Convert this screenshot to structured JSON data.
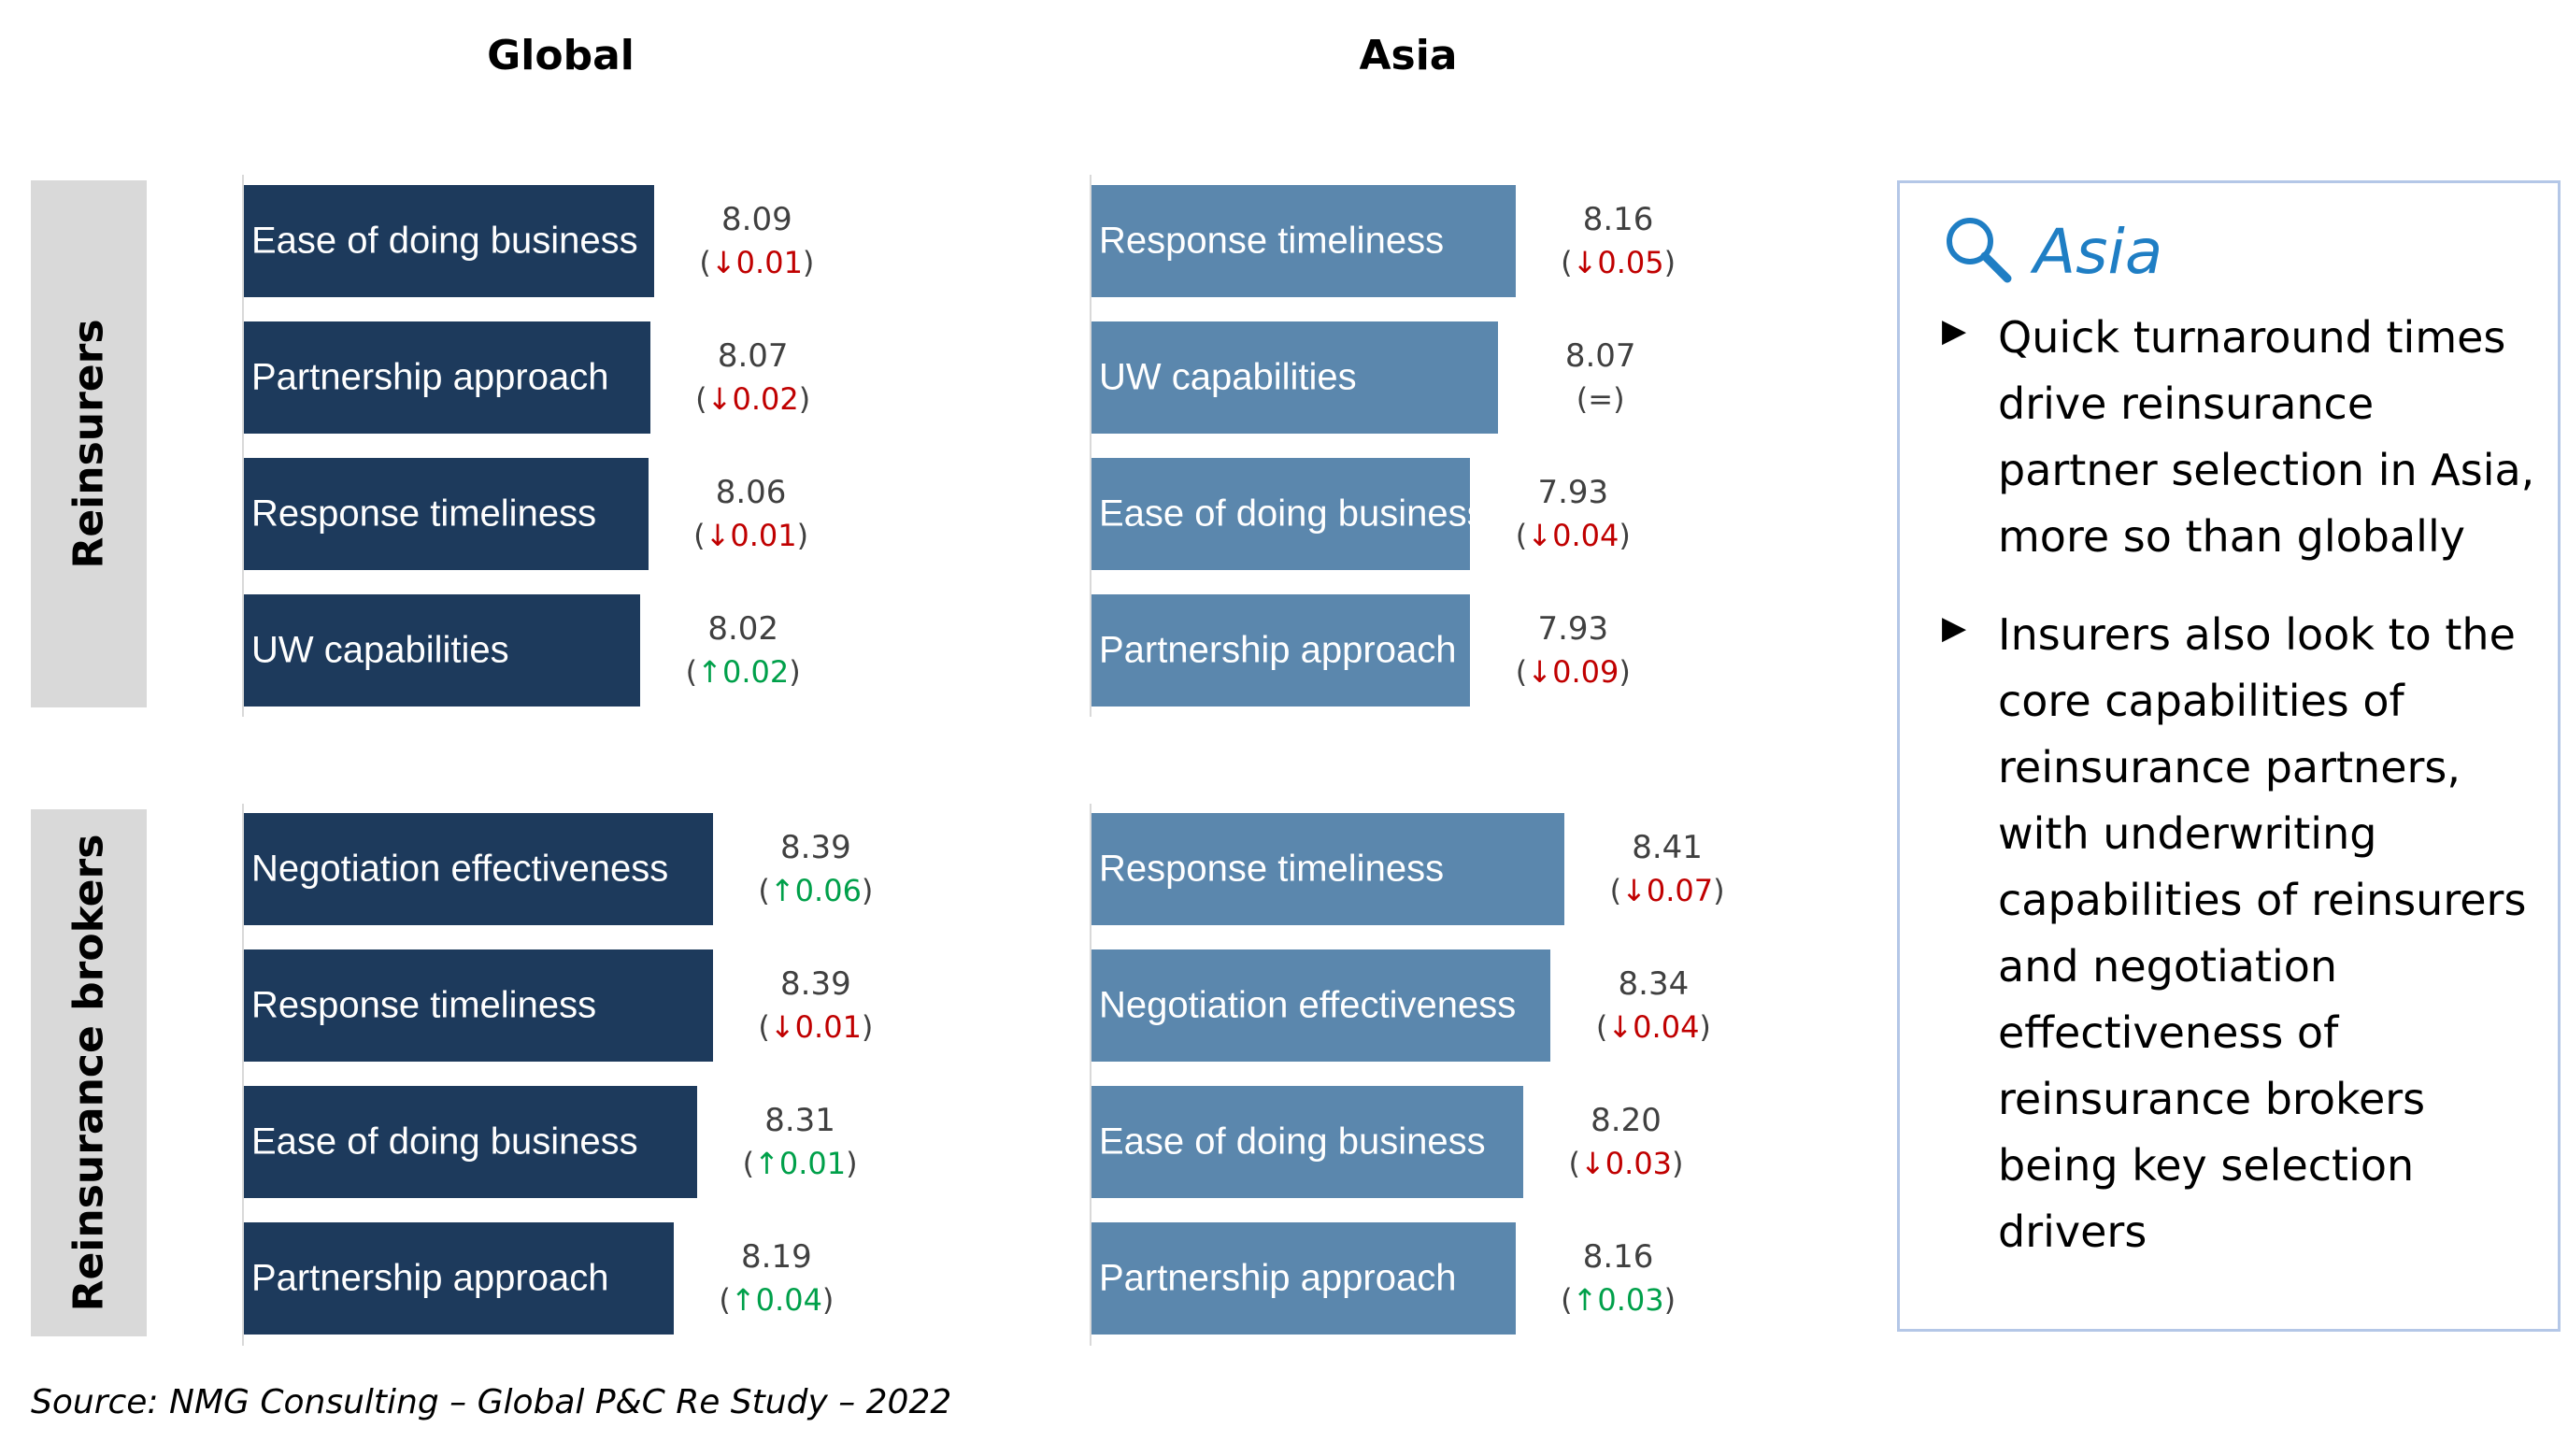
{
  "chart_data": [
    {
      "type": "bar",
      "title": "Global",
      "orientation": "horizontal",
      "groups": [
        {
          "name": "Reinsurers",
          "categories": [
            "Ease of doing business",
            "Partnership approach",
            "Response timeliness",
            "UW capabilities"
          ],
          "values": [
            8.09,
            8.07,
            8.06,
            8.02
          ],
          "value_labels": [
            "8.09",
            "8.07",
            "8.06",
            "8.02"
          ],
          "changes": [
            "(↓0.01)",
            "(↓0.02)",
            "(↓0.01)",
            "(↑0.02)"
          ],
          "directions": [
            "down",
            "down",
            "down",
            "up"
          ]
        },
        {
          "name": "Reinsurance brokers",
          "categories": [
            "Negotiation effectiveness",
            "Response timeliness",
            "Ease of doing business",
            "Partnership approach"
          ],
          "values": [
            8.39,
            8.39,
            8.31,
            8.19
          ],
          "value_labels": [
            "8.39",
            "8.39",
            "8.31",
            "8.19"
          ],
          "changes": [
            "(↑0.06)",
            "(↓0.01)",
            "(↑0.01)",
            "(↑0.04)"
          ],
          "directions": [
            "up",
            "down",
            "up",
            "up"
          ]
        }
      ],
      "bar_color": "#1d3a5c"
    },
    {
      "type": "bar",
      "title": "Asia",
      "orientation": "horizontal",
      "groups": [
        {
          "name": "Reinsurers",
          "categories": [
            "Response timeliness",
            "UW capabilities",
            "Ease of doing business",
            "Partnership approach"
          ],
          "values": [
            8.16,
            8.07,
            7.93,
            7.93
          ],
          "value_labels": [
            "8.16",
            "8.07",
            "7.93",
            "7.93"
          ],
          "changes": [
            "(↓0.05)",
            "(=)",
            "(↓0.04)",
            "(↓0.09)"
          ],
          "directions": [
            "down",
            "same",
            "down",
            "down"
          ]
        },
        {
          "name": "Reinsurance brokers",
          "categories": [
            "Response timeliness",
            "Negotiation effectiveness",
            "Ease of doing business",
            "Partnership approach"
          ],
          "values": [
            8.41,
            8.34,
            8.2,
            8.16
          ],
          "value_labels": [
            "8.41",
            "8.34",
            "8.20",
            "8.16"
          ],
          "changes": [
            "(↓0.07)",
            "(↓0.04)",
            "(↓0.03)",
            "(↑0.03)"
          ],
          "directions": [
            "down",
            "down",
            "down",
            "up"
          ]
        }
      ],
      "bar_color": "#5b87ad"
    }
  ],
  "colors": {
    "up": "#00a04a",
    "down": "#c00000",
    "same": "#404040",
    "accent": "#1f7ec4"
  },
  "group_labels": {
    "reinsurers": "Reinsurers",
    "brokers": "Reinsurance brokers"
  },
  "insight": {
    "icon": "search-icon",
    "title": "Asia",
    "bullets": [
      "Quick turnaround times drive reinsurance partner selection in Asia, more so than globally",
      "Insurers also look to the core capabilities of reinsurance partners, with underwriting capabilities of reinsurers and negotiation effectiveness of reinsurance brokers being key selection drivers"
    ]
  },
  "source": "Source: NMG Consulting – Global P&C Re Study – 2022"
}
